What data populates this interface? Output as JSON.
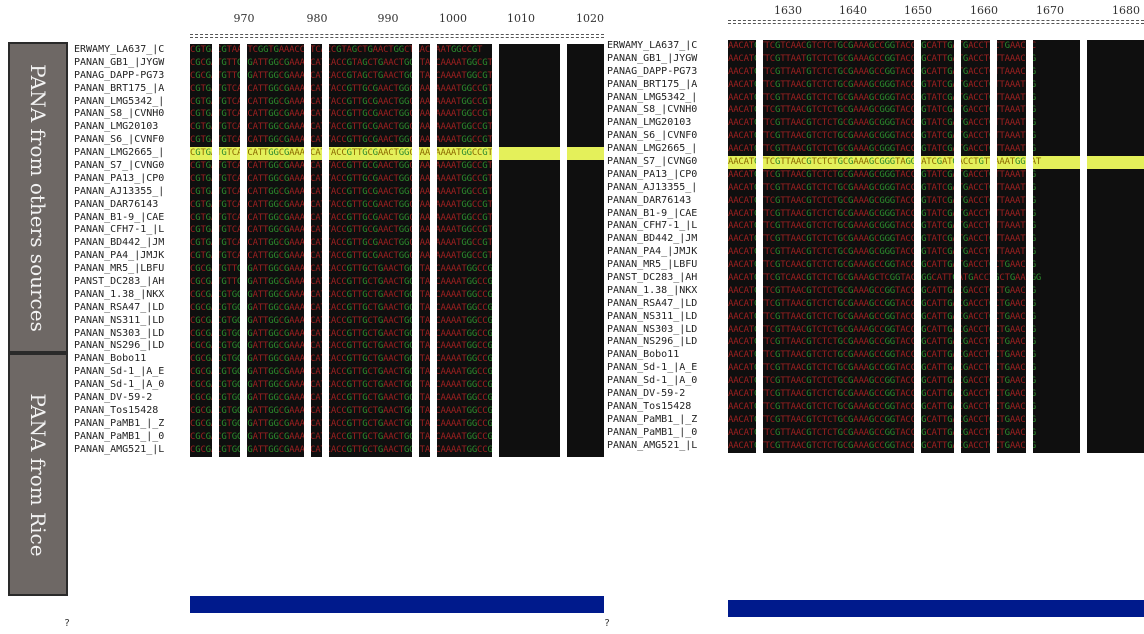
{
  "ruler_left": [
    "970",
    "980",
    "990",
    "1000",
    "1010",
    "1020"
  ],
  "ruler_right": [
    "1630",
    "1640",
    "1650",
    "1660",
    "1670",
    "1680"
  ],
  "groups": {
    "other": "PANA from others sources",
    "rice": "PANA from Rice"
  },
  "names": [
    "ERWAMY_LA637_|C",
    "PANAN_GB1_|JYGW",
    "PANAG_DAPP-PG73",
    "PANAN_BRT175_|A",
    "PANAN_LMG5342_|",
    "PANAN_S8_|CVNH0",
    "PANAN_LMG20103",
    "PANAN_S6_|CVNF0",
    "PANAN_LMG2665_|",
    "PANAN_S7_|CVNG0",
    "PANAN_PA13_|CP0",
    "PANAN_AJ13355_|",
    "PANAN_DAR76143",
    "PANAN_B1-9_|CAE",
    "PANAN_CFH7-1_|L",
    "PANAN_BD442_|JM",
    "PANAN_PA4_|JMJK",
    "PANAN_MR5_|LBFU",
    "PANST_DC283_|AH",
    "PANAN_1.38_|NKX",
    "PANAN_RSA47_|LD",
    "PANAN_NS311_|LD",
    "PANAN_NS303_|LD",
    "PANAN_NS296_|LD",
    "PANAN_Bobo11",
    "PANAN_Sd-1_|A_E",
    "PANAN_Sd-1_|A_0",
    "PANAN_DV-59-2",
    "PANAN_Tos15428",
    "PANAN_PaMB1_|_Z",
    "PANAN_PaMB1_|_0",
    "PANAN_AMG521_|L"
  ],
  "left_rows": [
    "CGTGACGTAACTCGGTGAAACCATCACCGTAGCTGAACTGGCTAACAAATGGCCGT",
    "CGCGATGTTGTGATTGGCGAAACCATCACCGTAGCTGAACTGGCTAACAAAATGGCGT",
    "CGCGATGTTGTGATTGGCGAAACCATCACCGTAGCTGAACTGGCTAACAAAATGGCGTG",
    "CGTGATGTCAACATTGGCGAAACCATTACCGTTGCGAACTGGCTAACAAAATGGCCGT",
    "CGTGATGTCAACATTGGCGAAACCATTACCGTTGCGAACTGGCTAACAAAATGGCCGT",
    "CGTGATGTCAACATTGGCGAAACCATTACCGTTGCGAACTGGCTAACAAAATGGCCGT",
    "CGTGATGTCAACATTGGCGAAACCATTACCGTTGCGAACTGGCTAACAAAATGGCCGT",
    "CGTGATGTCAACATTGGCGAAACCATTACCGTTGCGAACTGGCTAACAAAATGGCCGT",
    "CGTGATGTCATCATTGGCGAAACCATTACCGTTGCGAACTGGCTAACAAAATGGCCGT",
    "CGTGATGTCAACATTGGCGAAACCATTACCGTTGCGAACTGGCTAACAAAATGGCCGT",
    "CGTGATGTCAACATTGGCGAAACCATTACCGTTGCGAACTGGCTAACAAAATGGCCGT",
    "CGTGATGTCAACATTGGCGAAACCATTACCGTTGCGAACTGGCTAACAAAATGGCCGT",
    "CGTGATGTCAACATTGGCGAAACCATTACCGTTGCGAACTGGCTAACAAAATGGCCGT",
    "CGTGATGTCAACATTGGCGAAACCATTACCGTTGCGAACTGGCTAACAAAATGGCCGT",
    "CGTGATGTCAACATTGGCGAAACCATTACCGTTGCGAACTGGCTAACAAAATGGCCGT",
    "CGTGATGTCAACATTGGCGAAACCATTACCGTTGCGAACTGGCTAACAAAATGGCCGT",
    "CGTGATGTCAACATTGGCGAAACCATTACCGTTGCGAACTGGCTAACAAAATGGCCGT",
    "CGCGATGTTGTGATTGGCGAAACCATCACCGTTGCTGAACTGGCTAACAAAATGGCCGT",
    "CGCGATGTTGTGATTGGCGAAACCATCACCGTTGCTGAACTGGCTAACAAAATGGCCGT",
    "CGCGACGTGGTGATTGGCGAAACCATCACCGTTGCTGAACTGGCTAACAAAATGGCCGT",
    "CGCGACGTGGTGATTGGCGAAACCATCACCGTTGCTGAACTGGCTAACAAAATGGCCGT",
    "CGCGACGTGGTGATTGGCGAAACCATCACCGTTGCTGAACTGGCTAACAAAATGGCCGT",
    "CGCGACGTGGTGATTGGCGAAACCATCACCGTTGCTGAACTGGCTAACAAAATGGCCGT",
    "CGCGACGTGGTGATTGGCGAAACCATCACCGTTGCTGAACTGGCTAACAAAATGGCCGT",
    "CGCGACGTGGTGATTGGCGAAACCATCACCGTTGCTGAACTGGCTAACAAAATGGCCGT",
    "CGCGACGTGGTGATTGGCGAAACCATCACCGTTGCTGAACTGGCTAACAAAATGGCCGT",
    "CGCGACGTGGTGATTGGCGAAACCATCACCGTTGCTGAACTGGCTAACAAAATGGCCGT",
    "CGCGACGTGGTGATTGGCGAAACCATCACCGTTGCTGAACTGGCTAACAAAATGGCCGT",
    "CGCGACGTGGTGATTGGCGAAACCATCACCGTTGCTGAACTGGCTAACAAAATGGCCGT",
    "CGCGACGTGGTGATTGGCGAAACCATCACCGTTGCTGAACTGGCTAACAAAATGGCCGT",
    "CGCGACGTGGTGATTGGCGAAACCATCACCGTTGCTGAACTGGCTAACAAAATGGCCGT",
    "CGCGACGTGGTGATTGGCGAAACCATCACCGTTGCTGAACTGGCTAACAAAATGGCCGT"
  ],
  "right_rows": [
    "AACATGTTCGTCAACGTCTCTGCGAAAGCCGGTACCGGCATTGATGACCTTCTGAACGC",
    "AACATGTTCGTTAATGTCTCTGCGAAAGCCGGTACCGGCATTGATGACCTCTTAAACGG",
    "AACATGTTCGTTAATGTCTCTGCGAAAGCCGGTACCGGCATTGATGACCTCTTAAACGG",
    "AACATGTTCGTTAACGTCTCTGCGAAAGCGGGTACCGGTATCGATGACCTGTTAAATGG",
    "AACATGTTCGTTAACGTCTCTGCGAAAGCGGGTACCGGTATCGATGACCTGTTAAATGG",
    "AACATGTTCGTTAACGTCTCTGCGAAAGCGGGTACCGGTATCGATGACCTGTTAAATGG",
    "AACATGTTCGTTAACGTCTCTGCGAAAGCGGGTACCGGTATCGATGACCTGTTAAATGG",
    "AACATGTTCGTTAACGTCTCTGCGAAAGCGGGTACCGGTATCGATGACCTGTTAAATGG",
    "AACATGTTCGTTAACGTCTCTGCGAAAGCGGGTACCGGTATCGATGACCTGTTAAATGG",
    "AACATGTTCGTTAACGTCTCTGCGAAAGCGGGTAGGTATCGATGACCTGTTAAATGGTAT",
    "AACATGTTCGTTAACGTCTCTGCGAAAGCGGGTACCGGTATCGATGACCTGTTAAATGG",
    "AACATGTTCGTTAACGTCTCTGCGAAAGCGGGTACCGGTATCGATGACCTGTTAAATGG",
    "AACATGTTCGTTAACGTCTCTGCGAAAGCGGGTACCGGTATCGATGACCTGTTAAATGG",
    "AACATGTTCGTTAACGTCTCTGCGAAAGCGGGTACCGGTATCGATGACCTGTTAAATGG",
    "AACATGTTCGTTAACGTCTCTGCGAAAGCGGGTACCGGTATCGATGACCTGTTAAATGG",
    "AACATGTTCGTTAACGTCTCTGCGAAAGCGGGTACCGGTATCGATGACCTGTTAAATGG",
    "AACATGTTCGTTAACGTCTCTGCGAAAGCGGGTACCGGTATCGATGACCTGTTAAATGG",
    "AACATGTTCGTCAACGTCTCTGCGAAAGCCGGTACCGGCATTGATGACCTGCTGAACGG",
    "AACATGTTCGTCAACGTCTCTGCGAAAGCTCGGTACCGGCATTGATGACCTGCTGAACGG",
    "AACATGTTCGTTAACGTCTCTGCGAAAGCCGGTACCGGCATTGACGACCTGCTGAACGG",
    "AACATGTTCGTTAACGTCTCTGCGAAAGCCGGTACCGGCATTGACGACCTGCTGAACGG",
    "AACATGTTCGTTAACGTCTCTGCGAAAGCCGGTACCGGCATTGACGACCTGCTGAACGG",
    "AACATGTTCGTTAACGTCTCTGCGAAAGCCGGTACCGGCATTGACGACCTGCTGAACGG",
    "AACATGTTCGTTAACGTCTCTGCGAAAGCCGGTACCGGCATTGACGACCTGCTGAACGG",
    "AACATGTTCGTTAACGTCTCTGCGAAAGCCGGTACCGGCATTGACGACCTGCTGAACGG",
    "AACATGTTCGTTAACGTCTCTGCGAAAGCCGGTACCGGCATTGACGACCTGCTGAACGG",
    "AACATGTTCGTTAACGTCTCTGCGAAAGCCGGTACCGGCATTGACGACCTGCTGAACGG",
    "AACATGTTCGTTAACGTCTCTGCGAAAGCCGGTACCGGCATTGACGACCTGCTGAACGG",
    "AACATGTTCGTTAACGTCTCTGCGAAAGCCGGTACCGGCATTGACGACCTGCTGAACGG",
    "AACATGTTCGTTAACGTCTCTGCGAAAGCCGGTACCGGCATTGACGACCTGCTGAACGG",
    "AACATGTTCGTTAACGTCTCTGCGAAAGCCGGTACCGGCATTGACGACCTGCTGAACGG",
    "AACATGTTCGTTAACGTCTCTGCGAAAGCCGGTACCGGCATTGACGACCTGCTGAACGG"
  ],
  "highlight": {
    "left_row": 8,
    "right_row": 9
  },
  "question_mark": "?",
  "colors": {
    "bg": "#0f0f0f",
    "footer": "#001a8c",
    "highlight": "#e4f05a"
  }
}
